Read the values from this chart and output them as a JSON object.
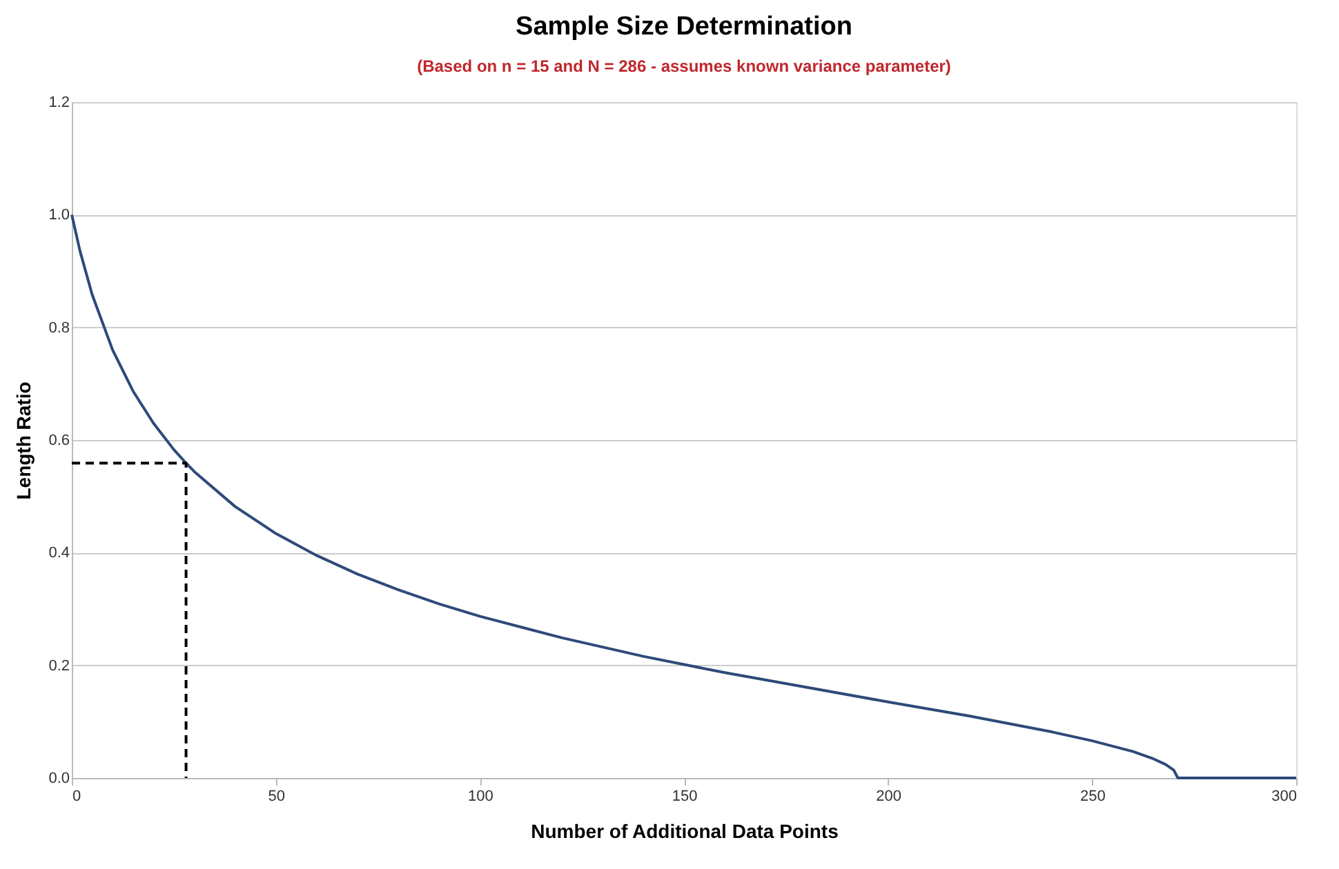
{
  "chart_data": {
    "type": "line",
    "title": "Sample Size Determination",
    "subtitle": "(Based on  n = 15 and N = 286 - assumes known variance parameter)",
    "xlabel": "Number of Additional Data Points",
    "ylabel": "Length Ratio",
    "xlim": [
      0,
      300
    ],
    "xticks": [
      0,
      50,
      100,
      150,
      200,
      250,
      300
    ],
    "ylim": [
      0,
      1.2
    ],
    "yticks": [
      {
        "value": 0,
        "label": "0.0"
      },
      {
        "value": 0.2,
        "label": "0.2"
      },
      {
        "value": 0.4,
        "label": "0.4"
      },
      {
        "value": 0.6,
        "label": "0.6"
      },
      {
        "value": 0.8,
        "label": "0.8"
      },
      {
        "value": 1.0,
        "label": "1.0"
      },
      {
        "value": 1.2,
        "label": "1.2"
      }
    ],
    "grid": "y",
    "marker": "none",
    "series": [
      {
        "color": "#2e4a7a",
        "line_style": "solid",
        "x": [
          0,
          2,
          5,
          10,
          15,
          20,
          25,
          28,
          30,
          40,
          50,
          60,
          70,
          80,
          90,
          100,
          120,
          140,
          160,
          180,
          200,
          220,
          240,
          250,
          260,
          265,
          268,
          270,
          271,
          300
        ],
        "values": [
          1.0,
          0.936,
          0.858,
          0.76,
          0.687,
          0.63,
          0.583,
          0.559,
          0.544,
          0.482,
          0.434,
          0.395,
          0.362,
          0.334,
          0.309,
          0.287,
          0.249,
          0.216,
          0.187,
          0.161,
          0.135,
          0.11,
          0.082,
          0.066,
          0.047,
          0.034,
          0.024,
          0.014,
          0,
          0
        ]
      },
      {
        "color": "#000000",
        "line_style": "dashed",
        "x": [
          0,
          28,
          28
        ],
        "values": [
          0.559,
          0.559,
          0
        ]
      }
    ]
  }
}
